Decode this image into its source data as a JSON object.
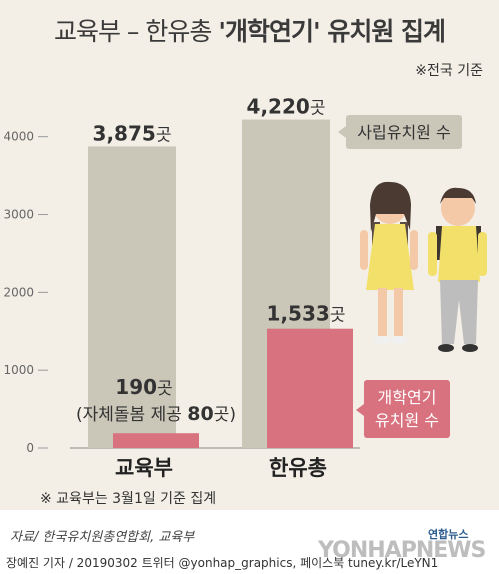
{
  "title": {
    "part1": "교육부 – 한유총 ",
    "part2": "'개학연기' 유치원 집계"
  },
  "basis_note": "※전국 기준",
  "chart_data": {
    "type": "bar",
    "categories": [
      "교육부",
      "한유총"
    ],
    "series": [
      {
        "name": "사립유치원 수",
        "values": [
          3875,
          4220
        ],
        "color": "#cac6b8"
      },
      {
        "name": "개학연기 유치원 수",
        "values": [
          190,
          1533
        ],
        "color": "#d8727f"
      }
    ],
    "value_labels": {
      "total": [
        "3,875곳",
        "4,220곳"
      ],
      "delay": [
        "190곳",
        "1,533곳"
      ]
    },
    "extra_label": {
      "prefix": "(자체돌봄 제공 ",
      "value": "80",
      "suffix": "곳)"
    },
    "yticks": [
      "0",
      "1000",
      "2000",
      "3000",
      "4000"
    ],
    "ylim": [
      0,
      4600
    ],
    "callouts": {
      "total": "사립유치원 수",
      "delay_line1": "개학연기",
      "delay_line2": "유치원 수"
    }
  },
  "footnote": "※ 교육부는 3월1일 기준 집계",
  "footer": {
    "source": "자료/ 한국유치원총연합회, 교육부",
    "credit": "장예진 기자 / 20190302 트위터 @yonhap_graphics, 페이스북 tuney.kr/LeYN1",
    "logo_small": "연합뉴스",
    "logo": "YONHAPNEWS"
  },
  "colors": {
    "background": "#f3efe6",
    "gray_bar": "#cac6b8",
    "pink_bar": "#d8727f"
  }
}
